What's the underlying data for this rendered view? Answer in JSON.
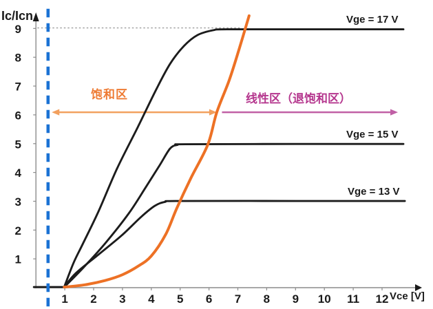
{
  "chart_data": {
    "type": "line",
    "title": "",
    "xlabel": "Vce [V]",
    "ylabel": "Ic/Icn",
    "xlim": [
      0,
      13.3
    ],
    "ylim": [
      0,
      9.8
    ],
    "grid": false,
    "legend_position": "curve-end-labels",
    "x_ticks": [
      1,
      2,
      3,
      4,
      5,
      6,
      7,
      8,
      9,
      10,
      11,
      12
    ],
    "y_ticks": [
      1,
      2,
      3,
      4,
      5,
      6,
      7,
      8,
      9
    ],
    "series": [
      {
        "id": "vge-17v",
        "name": "Vge = 17 V",
        "color": "#1c1c1c",
        "width": 2.9,
        "points": [
          [
            0.98,
            0.02
          ],
          [
            1.3,
            0.85
          ],
          [
            1.62,
            1.51
          ],
          [
            2.17,
            2.65
          ],
          [
            2.81,
            4.13
          ],
          [
            3.53,
            5.57
          ],
          [
            4.17,
            6.88
          ],
          [
            4.65,
            7.77
          ],
          [
            5.13,
            8.39
          ],
          [
            5.6,
            8.77
          ],
          [
            6.15,
            8.94
          ],
          [
            6.63,
            8.97
          ],
          [
            9.5,
            8.97
          ],
          [
            12.74,
            8.97
          ]
        ]
      },
      {
        "id": "vge-15v",
        "name": "Vge = 15 V",
        "color": "#1c1c1c",
        "width": 2.9,
        "points": [
          [
            0.98,
            0.02
          ],
          [
            1.62,
            0.67
          ],
          [
            2.41,
            1.55
          ],
          [
            3.22,
            2.58
          ],
          [
            3.81,
            3.49
          ],
          [
            4.29,
            4.25
          ],
          [
            4.65,
            4.83
          ],
          [
            4.91,
            4.96
          ],
          [
            5.2,
            4.98
          ],
          [
            9.0,
            4.99
          ],
          [
            12.74,
            4.99
          ]
        ]
      },
      {
        "id": "vge-13v",
        "name": "Vge = 13 V",
        "color": "#1c1c1c",
        "width": 2.9,
        "points": [
          [
            0.98,
            0.02
          ],
          [
            1.38,
            0.5
          ],
          [
            2.17,
            1.15
          ],
          [
            2.98,
            1.82
          ],
          [
            3.65,
            2.46
          ],
          [
            4.12,
            2.84
          ],
          [
            4.48,
            2.98
          ],
          [
            4.96,
            3.01
          ],
          [
            9.0,
            3.01
          ],
          [
            12.79,
            3.01
          ]
        ]
      },
      {
        "id": "desaturation-boundary",
        "name": "",
        "color": "#ed7125",
        "width": 4,
        "points": [
          [
            0.98,
            0.02
          ],
          [
            1.7,
            0.1
          ],
          [
            2.4,
            0.25
          ],
          [
            3.0,
            0.45
          ],
          [
            3.55,
            0.75
          ],
          [
            4.0,
            1.1
          ],
          [
            4.5,
            1.85
          ],
          [
            4.88,
            2.75
          ],
          [
            5.37,
            3.8
          ],
          [
            5.96,
            4.97
          ],
          [
            6.27,
            6.09
          ],
          [
            6.7,
            7.2
          ],
          [
            7.05,
            8.3
          ],
          [
            7.39,
            9.44
          ]
        ]
      }
    ],
    "annotations": {
      "origin_segment": {
        "y": 0.02,
        "x_from": -0.07,
        "x_to": 1.0,
        "color": "#1c1c1c"
      },
      "dotted_hline": {
        "y": 9.02,
        "x_from": 0.05,
        "x_to": 7.1,
        "color": "#9c9c9c"
      },
      "dashed_vline": {
        "x": 0.42,
        "y_from": -0.65,
        "y_to": 9.8,
        "color": "#1b72d4"
      },
      "saturation_arrow": {
        "label": "饱和区",
        "y": 6.09,
        "x_from": 0.55,
        "x_to": 6.27,
        "double": true,
        "color": "#f2a05e"
      },
      "linear_arrow": {
        "label": "线性区（退饱和区）",
        "y": 6.09,
        "x_from": 6.45,
        "x_to": 12.55,
        "double": false,
        "color": "#c05fa5"
      }
    }
  },
  "labels": {
    "y_axis_title": "Ic/Icn",
    "x_axis_title": "Vce [V]",
    "saturation_region": "饱和区",
    "linear_region": "线性区（退饱和区）"
  },
  "colors": {
    "curve_black": "#1c1c1c",
    "boundary_orange": "#ed7125",
    "saturation_text_orange": "#ee7b34",
    "saturation_arrow_orange": "#f2a05e",
    "linear_text_magenta": "#b5378e",
    "linear_arrow_magenta": "#c05fa5",
    "threshold_blue": "#1b72d4",
    "dotted_gray": "#9c9c9c",
    "axis_gray": "#8b8b8b",
    "text_black": "#1a1a1a"
  }
}
